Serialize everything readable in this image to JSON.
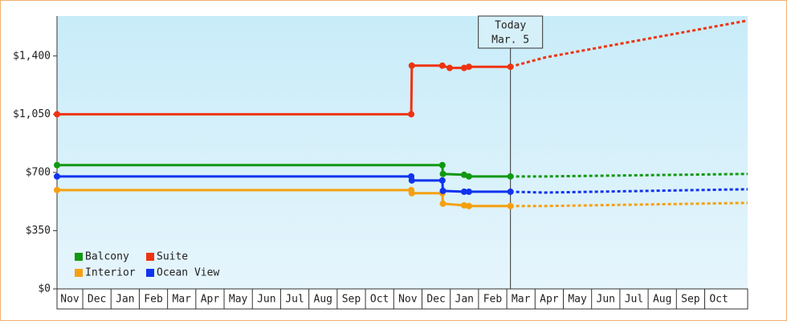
{
  "chart_data": {
    "type": "line",
    "xlim": [
      0.09,
      24.52
    ],
    "xticks": [
      {
        "value": 0,
        "label": "Nov"
      },
      {
        "value": 1,
        "label": "Dec"
      },
      {
        "value": 2,
        "label": "Jan"
      },
      {
        "value": 3,
        "label": "Feb"
      },
      {
        "value": 4,
        "label": "Mar"
      },
      {
        "value": 5,
        "label": "Apr"
      },
      {
        "value": 6,
        "label": "May"
      },
      {
        "value": 7,
        "label": "Jun"
      },
      {
        "value": 8,
        "label": "Jul"
      },
      {
        "value": 9,
        "label": "Aug"
      },
      {
        "value": 10,
        "label": "Sep"
      },
      {
        "value": 11,
        "label": "Oct"
      },
      {
        "value": 12,
        "label": "Nov"
      },
      {
        "value": 13,
        "label": "Dec"
      },
      {
        "value": 14,
        "label": "Jan"
      },
      {
        "value": 15,
        "label": "Feb"
      },
      {
        "value": 16,
        "label": "Mar"
      },
      {
        "value": 17,
        "label": "Apr"
      },
      {
        "value": 18,
        "label": "May"
      },
      {
        "value": 19,
        "label": "Jun"
      },
      {
        "value": 20,
        "label": "Jul"
      },
      {
        "value": 21,
        "label": "Aug"
      },
      {
        "value": 22,
        "label": "Sep"
      },
      {
        "value": 23,
        "label": "Oct"
      }
    ],
    "ylim": [
      0,
      1640
    ],
    "yticks": [
      {
        "value": 0,
        "label": "$0"
      },
      {
        "value": 350,
        "label": "$350"
      },
      {
        "value": 700,
        "label": "$700"
      },
      {
        "value": 1050,
        "label": "$1,050"
      },
      {
        "value": 1400,
        "label": "$1,400"
      }
    ],
    "annotation": {
      "x": 16.13,
      "lines": [
        "Today",
        "Mar. 5"
      ]
    },
    "series": [
      {
        "name": "Balcony",
        "color": "#119911",
        "x": [
          0.09,
          13.72,
          13.74,
          14.49,
          14.66,
          16.13
        ],
        "values": [
          744,
          744,
          691,
          686,
          676,
          676
        ],
        "forecast": {
          "x": [
            16.13,
            17.35,
            24.52
          ],
          "values": [
            676,
            676,
            691
          ]
        }
      },
      {
        "name": "Suite",
        "color": "#ee3311",
        "x": [
          0.09,
          12.62,
          12.64,
          13.72,
          13.98,
          14.49,
          14.66,
          16.13
        ],
        "values": [
          1050,
          1050,
          1342,
          1342,
          1328,
          1328,
          1335,
          1335
        ],
        "forecast": {
          "x": [
            16.13,
            17.35,
            24.52
          ],
          "values": [
            1335,
            1391,
            1613
          ]
        }
      },
      {
        "name": "Interior",
        "color": "#f5a010",
        "x": [
          0.09,
          12.62,
          12.64,
          13.72,
          13.74,
          14.49,
          14.66,
          16.13
        ],
        "values": [
          594,
          594,
          575,
          575,
          512,
          502,
          498,
          498
        ],
        "forecast": {
          "x": [
            16.13,
            17.35,
            24.52
          ],
          "values": [
            498,
            498,
            517
          ]
        }
      },
      {
        "name": "Ocean View",
        "color": "#1133ee",
        "x": [
          0.09,
          12.62,
          12.64,
          13.72,
          13.74,
          14.49,
          14.66,
          16.13
        ],
        "values": [
          676,
          676,
          652,
          652,
          589,
          584,
          584,
          584
        ],
        "forecast": {
          "x": [
            16.13,
            17.35,
            24.52
          ],
          "values": [
            584,
            579,
            599
          ]
        }
      }
    ],
    "legend": "lower left"
  }
}
